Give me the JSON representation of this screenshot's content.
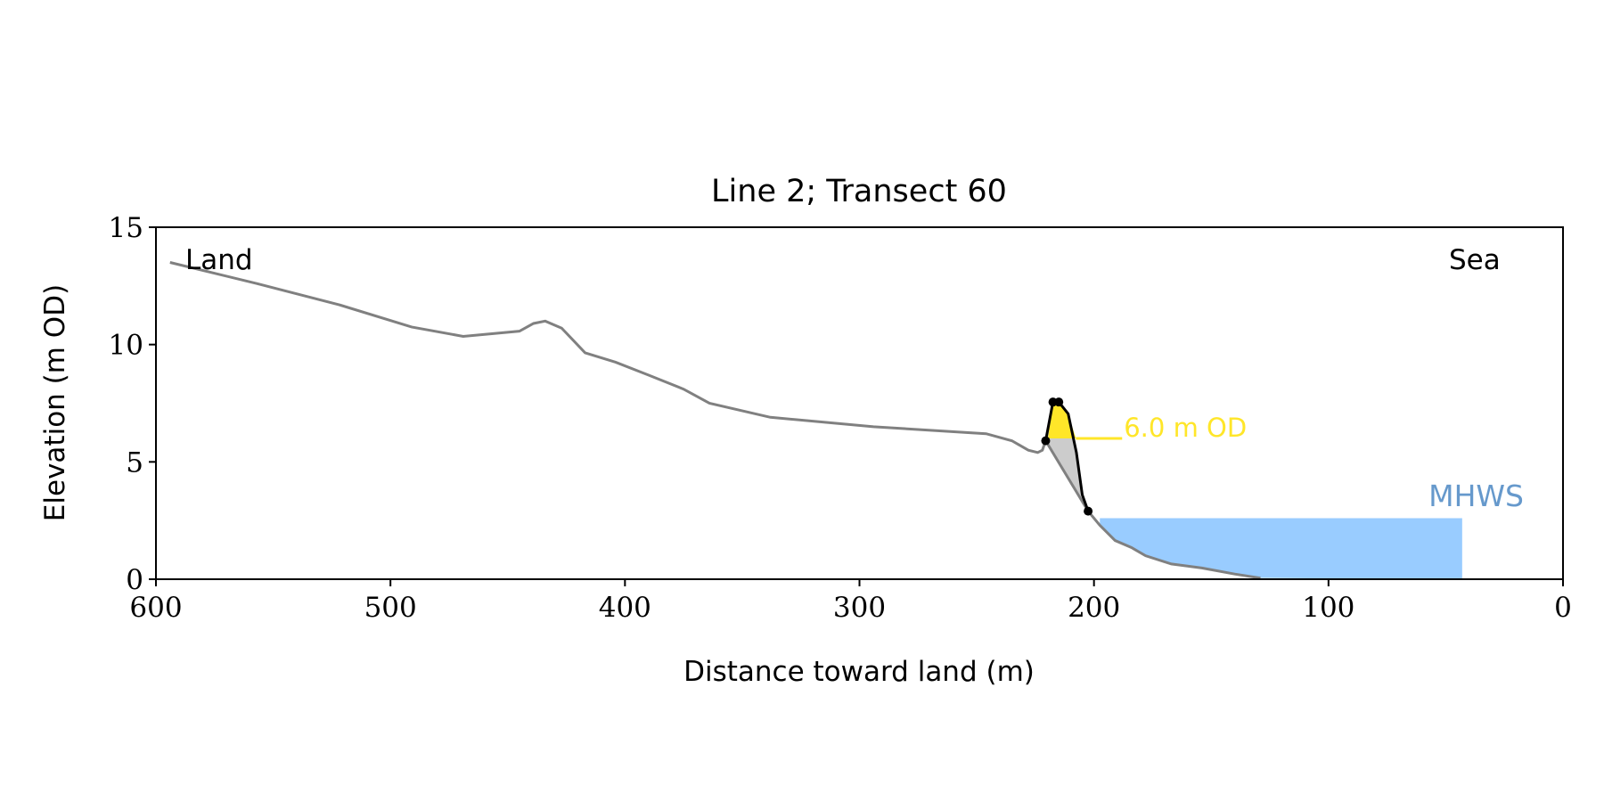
{
  "chart_data": {
    "type": "line",
    "title": "Line 2; Transect 60",
    "xlabel": "Distance toward land (m)",
    "ylabel": "Elevation (m OD)",
    "xlim": [
      600,
      0
    ],
    "ylim": [
      0,
      15
    ],
    "xticks": [
      600,
      500,
      400,
      300,
      200,
      100,
      0
    ],
    "yticks": [
      0,
      5,
      10,
      15
    ],
    "grid": false,
    "annotations": {
      "land": "Land",
      "sea": "Sea",
      "mhws_label": "MHWS",
      "od_label": "6.0 m OD"
    },
    "colors": {
      "profile": "#808080",
      "outline": "#000000",
      "yellow": "#ffe629",
      "gray_fill": "#cccccc",
      "mhws": "#99ccff",
      "mhws_text": "#6699cc"
    },
    "profile": {
      "x": [
        594,
        557,
        522,
        491,
        469,
        445,
        439,
        434,
        427,
        417,
        404,
        390,
        375,
        364,
        338,
        294,
        246,
        235,
        228,
        224,
        222,
        220.6,
        202.5,
        197.5,
        191,
        184,
        178,
        167,
        154,
        140,
        129
      ],
      "y": [
        13.5,
        12.6,
        11.7,
        10.75,
        10.35,
        10.57,
        10.9,
        11.0,
        10.7,
        9.65,
        9.25,
        8.7,
        8.1,
        7.5,
        6.9,
        6.5,
        6.2,
        5.9,
        5.5,
        5.4,
        5.5,
        5.9,
        2.9,
        2.3,
        1.65,
        1.35,
        1.0,
        0.65,
        0.48,
        0.22,
        0.05
      ]
    },
    "feature_outline": {
      "x": [
        220.6,
        217.5,
        215,
        211,
        207.5,
        205,
        202.5
      ],
      "y": [
        5.9,
        7.55,
        7.55,
        7.05,
        5.4,
        3.6,
        2.9
      ]
    },
    "feature_points": {
      "x": [
        220.6,
        217.5,
        215,
        202.5
      ],
      "y": [
        5.9,
        7.55,
        7.55,
        2.9
      ]
    },
    "od_level": {
      "value": 6.0,
      "x_end": 188
    },
    "mhws": {
      "value": 2.6,
      "x_start": 197.5,
      "x_end": 43
    }
  }
}
